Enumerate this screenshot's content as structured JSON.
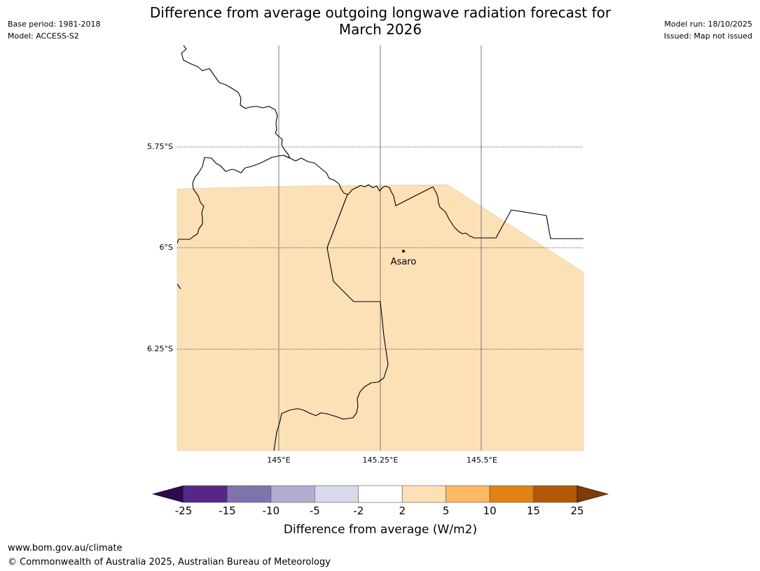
{
  "title_lines": [
    "Difference from average outgoing longwave radiation forecast for",
    "March 2026"
  ],
  "meta_left": {
    "base_period": "Base period: 1981-2018",
    "model": "Model: ACCESS-S2"
  },
  "meta_right": {
    "model_run": "Model run: 18/10/2025",
    "issued": "Issued: Map not issued"
  },
  "map": {
    "lat_labels": [
      "5.75°S",
      "6°S",
      "6.25°S"
    ],
    "lon_labels": [
      "145°E",
      "145.25°E",
      "145.5°E"
    ],
    "place": {
      "name": "Asaro",
      "icon": "location-dot-icon"
    },
    "forecast_category": "2 to 5",
    "forecast_color": "#fce0b6"
  },
  "colorbar": {
    "title": "Difference from average (W/m2)",
    "ticks": [
      "-25",
      "-15",
      "-10",
      "-5",
      "-2",
      "2",
      "5",
      "10",
      "15",
      "25"
    ],
    "under_color": "#2d0a4e",
    "over_color": "#7f3b08",
    "colors": [
      "#542788",
      "#8073ac",
      "#b2abd2",
      "#d8daeb",
      "#ffffff",
      "#fee0b6",
      "#fdb863",
      "#e08214",
      "#b35806"
    ]
  },
  "footer": {
    "url": "www.bom.gov.au/climate",
    "copyright": "© Commonwealth of Australia 2025, Australian Bureau of Meteorology"
  }
}
